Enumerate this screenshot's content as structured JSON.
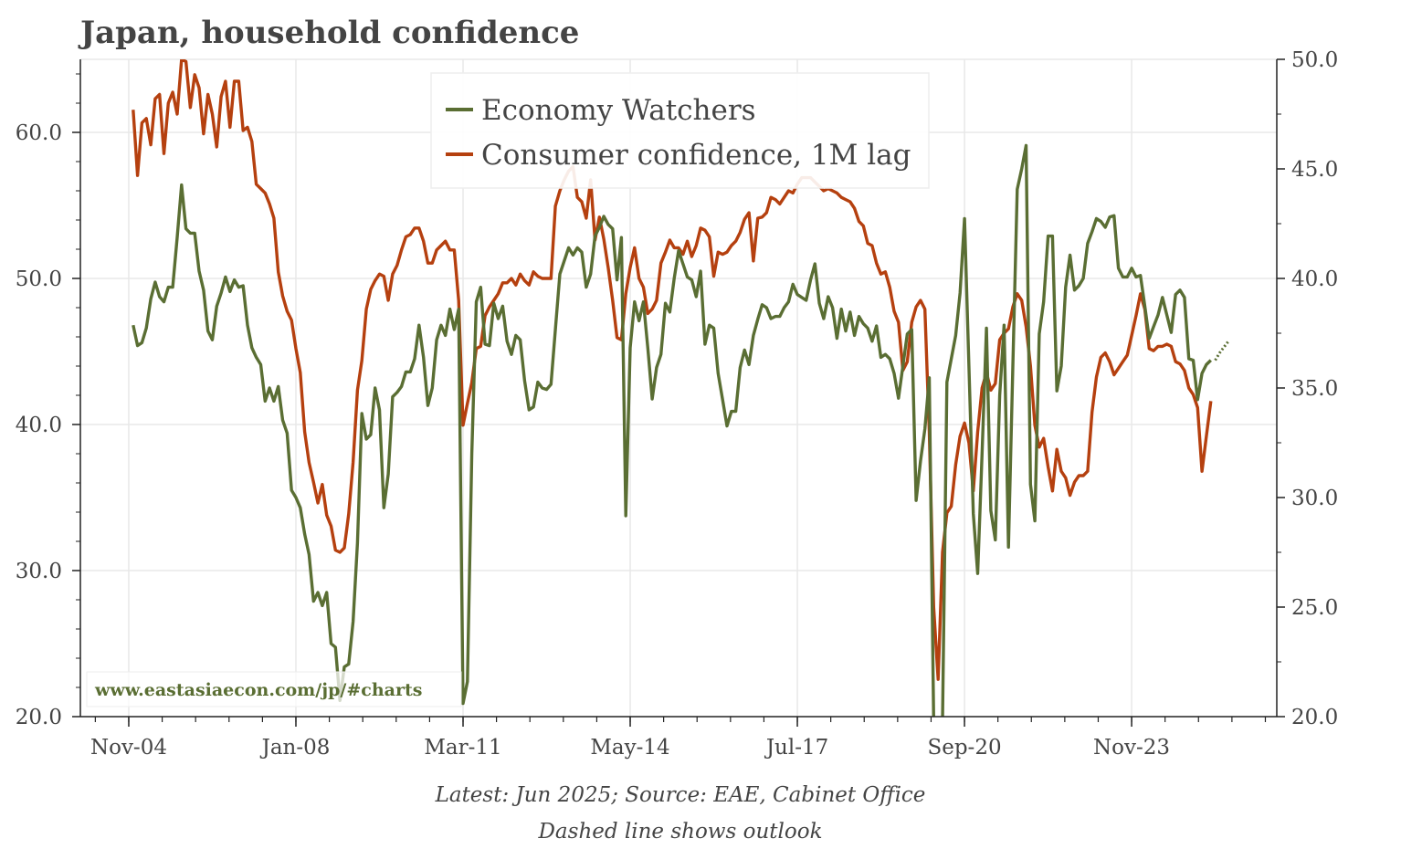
{
  "chart_data": {
    "type": "line",
    "title": "Japan, household confidence",
    "footnotes": [
      "Latest: Jun 2025; Source: EAE, Cabinet Office",
      "Dashed line shows outlook"
    ],
    "watermark": "www.eastasiaecon.com/jp/#charts",
    "x_ticks": [
      "Nov-04",
      "Jan-08",
      "Mar-11",
      "May-14",
      "Jul-17",
      "Sep-20",
      "Nov-23"
    ],
    "x_tick_dates": [
      "2004-11",
      "2008-01",
      "2011-03",
      "2014-05",
      "2017-07",
      "2020-09",
      "2023-11"
    ],
    "xlim": [
      "2003-12",
      "2026-08"
    ],
    "y_left": {
      "ylim": [
        20,
        65
      ],
      "ticks": [
        "20.0",
        "30.0",
        "40.0",
        "50.0",
        "60.0"
      ]
    },
    "y_right": {
      "ylim": [
        20,
        50
      ],
      "ticks": [
        "20.0",
        "25.0",
        "30.0",
        "35.0",
        "40.0",
        "45.0",
        "50.0"
      ]
    },
    "grid": true,
    "legend_position": "top-center",
    "series": [
      {
        "name": "Economy Watchers",
        "axis": "left",
        "color": "#5a6e33",
        "start": "2004-12",
        "frequency": "monthly",
        "values": [
          46.8,
          45.4,
          45.6,
          46.6,
          48.6,
          49.75,
          48.75,
          48.4,
          49.4,
          49.4,
          52.8,
          56.4,
          53.4,
          53.1,
          53.1,
          50.5,
          49.2,
          46.4,
          45.8,
          48.1,
          49.0,
          50.1,
          49.1,
          49.9,
          49.4,
          49.5,
          46.8,
          45.25,
          44.6,
          44.1,
          41.6,
          42.5,
          41.6,
          42.6,
          40.3,
          39.4,
          35.5,
          35.0,
          34.3,
          32.5,
          31.1,
          27.9,
          28.5,
          27.6,
          28.5,
          25.0,
          24.75,
          21.1,
          23.4,
          23.6,
          26.5,
          31.9,
          40.75,
          39.0,
          39.3,
          42.5,
          41.0,
          34.3,
          36.6,
          41.9,
          42.2,
          42.6,
          43.6,
          43.6,
          44.5,
          46.8,
          44.6,
          41.3,
          42.5,
          45.8,
          46.8,
          46.1,
          47.9,
          46.5,
          47.9,
          20.9,
          22.4,
          38.0,
          48.4,
          49.4,
          45.5,
          45.4,
          48.3,
          47.25,
          48.1,
          45.7,
          44.8,
          46.1,
          45.8,
          43.0,
          41.0,
          41.2,
          42.9,
          42.5,
          42.4,
          42.75,
          46.5,
          50.3,
          51.2,
          52.1,
          51.6,
          52.1,
          51.8,
          49.4,
          50.3,
          52.9,
          53.5,
          54.25,
          53.7,
          53.4,
          49.9,
          52.8,
          33.75,
          45.25,
          48.4,
          47.1,
          48.4,
          45.25,
          41.75,
          43.9,
          44.8,
          48.3,
          47.7,
          50.0,
          51.9,
          51.0,
          50.1,
          49.9,
          48.75,
          50.5,
          45.5,
          46.8,
          46.6,
          43.5,
          41.7,
          39.9,
          40.9,
          40.9,
          43.9,
          45.1,
          44.1,
          46.1,
          47.2,
          48.2,
          48.0,
          47.25,
          47.4,
          47.4,
          48.0,
          48.4,
          49.6,
          48.9,
          48.7,
          48.5,
          49.9,
          51.0,
          48.3,
          47.25,
          48.75,
          48.0,
          45.9,
          47.9,
          46.4,
          47.7,
          46.1,
          47.4,
          46.9,
          46.6,
          45.7,
          46.75,
          44.6,
          44.8,
          44.5,
          43.5,
          41.8,
          44.0,
          46.2,
          46.5,
          34.8,
          37.5,
          39.7,
          43.2,
          14.2,
          7.9,
          15.5,
          42.9,
          44.5,
          46.1,
          49.0,
          54.1,
          44.0,
          33.9,
          29.8,
          38.0,
          46.6,
          34.1,
          32.1,
          42.0,
          46.8,
          31.6,
          44.0,
          56.1,
          57.5,
          59.1,
          35.9,
          33.4,
          46.2,
          48.4,
          52.9,
          52.9,
          42.3,
          44.0,
          49.4,
          51.6,
          49.2,
          49.5,
          50.0,
          52.4,
          53.2,
          54.1,
          53.9,
          53.5,
          54.2,
          54.3,
          50.7,
          50.1,
          50.1,
          50.7,
          50.1,
          50.2,
          48.1,
          45.9,
          46.7,
          47.5,
          48.7,
          47.5,
          46.3,
          48.9,
          49.2,
          48.7,
          44.5,
          44.4,
          41.7,
          43.5,
          44.1,
          44.4
        ],
        "outlook": {
          "start": "2025-06",
          "values": [
            44.4,
            44.9,
            45.3,
            45.7
          ]
        }
      },
      {
        "name": "Consumer confidence, 1M lag",
        "axis": "right",
        "color": "#b5400f",
        "start": "2004-12",
        "frequency": "monthly",
        "values": [
          47.7,
          44.7,
          47.1,
          47.3,
          46.1,
          48.2,
          48.4,
          45.7,
          48.0,
          48.5,
          47.5,
          50.0,
          49.9,
          47.8,
          49.3,
          48.7,
          46.6,
          48.4,
          47.5,
          46.0,
          48.3,
          49.0,
          46.9,
          49.0,
          49.0,
          46.75,
          46.9,
          46.25,
          44.3,
          44.1,
          43.9,
          43.4,
          42.75,
          40.3,
          39.2,
          38.5,
          38.1,
          36.8,
          35.7,
          33.0,
          31.6,
          30.7,
          29.75,
          30.6,
          29.2,
          28.7,
          27.6,
          27.5,
          27.7,
          29.25,
          31.6,
          34.9,
          36.25,
          38.6,
          39.5,
          39.9,
          40.2,
          40.1,
          39.0,
          40.2,
          40.6,
          41.3,
          41.9,
          42.0,
          42.3,
          42.3,
          41.7,
          40.7,
          40.7,
          41.3,
          41.5,
          41.7,
          41.3,
          41.3,
          39.0,
          33.3,
          34.3,
          35.25,
          36.8,
          36.9,
          38.3,
          38.7,
          39.0,
          39.3,
          39.8,
          39.8,
          40.0,
          39.7,
          40.2,
          39.9,
          39.7,
          40.3,
          40.1,
          40.0,
          40.0,
          40.0,
          43.3,
          44.0,
          44.5,
          44.9,
          45.1,
          43.7,
          43.5,
          42.75,
          44.5,
          41.75,
          42.8,
          41.8,
          40.5,
          39.0,
          37.3,
          37.2,
          39.3,
          40.5,
          41.4,
          40.0,
          39.6,
          38.4,
          38.6,
          39.0,
          40.7,
          41.2,
          41.75,
          41.4,
          41.4,
          41.1,
          41.7,
          41.0,
          41.5,
          42.3,
          42.2,
          41.9,
          40.1,
          41.2,
          41.1,
          41.2,
          41.5,
          41.7,
          42.1,
          42.7,
          43.0,
          40.8,
          42.75,
          42.8,
          43.0,
          43.7,
          43.6,
          43.4,
          43.7,
          44.0,
          43.9,
          44.3,
          44.6,
          44.6,
          44.6,
          44.4,
          44.2,
          44.0,
          44.1,
          44.0,
          43.9,
          43.7,
          43.6,
          43.5,
          43.2,
          42.6,
          42.4,
          41.6,
          41.5,
          40.7,
          40.2,
          40.3,
          39.6,
          38.5,
          38.0,
          35.8,
          36.2,
          38.0,
          38.7,
          39.0,
          38.6,
          33.0,
          25.0,
          21.7,
          27.5,
          29.3,
          29.6,
          31.5,
          32.8,
          33.4,
          32.5,
          30.3,
          33.0,
          35.0,
          35.7,
          34.9,
          35.2,
          37.2,
          37.5,
          37.7,
          38.7,
          39.3,
          39.0,
          37.8,
          36.0,
          33.3,
          32.3,
          32.7,
          31.4,
          30.3,
          32.2,
          31.2,
          30.9,
          30.1,
          30.7,
          31.0,
          31.0,
          31.2,
          33.9,
          35.5,
          36.4,
          36.6,
          36.2,
          35.6,
          35.9,
          36.2,
          36.5,
          37.4,
          38.3,
          39.3,
          38.6,
          36.8,
          36.7,
          36.9,
          36.9,
          37.0,
          36.9,
          36.2,
          36.1,
          35.8,
          35.0,
          34.7,
          34.1,
          31.2,
          32.8,
          34.4
        ]
      }
    ]
  }
}
